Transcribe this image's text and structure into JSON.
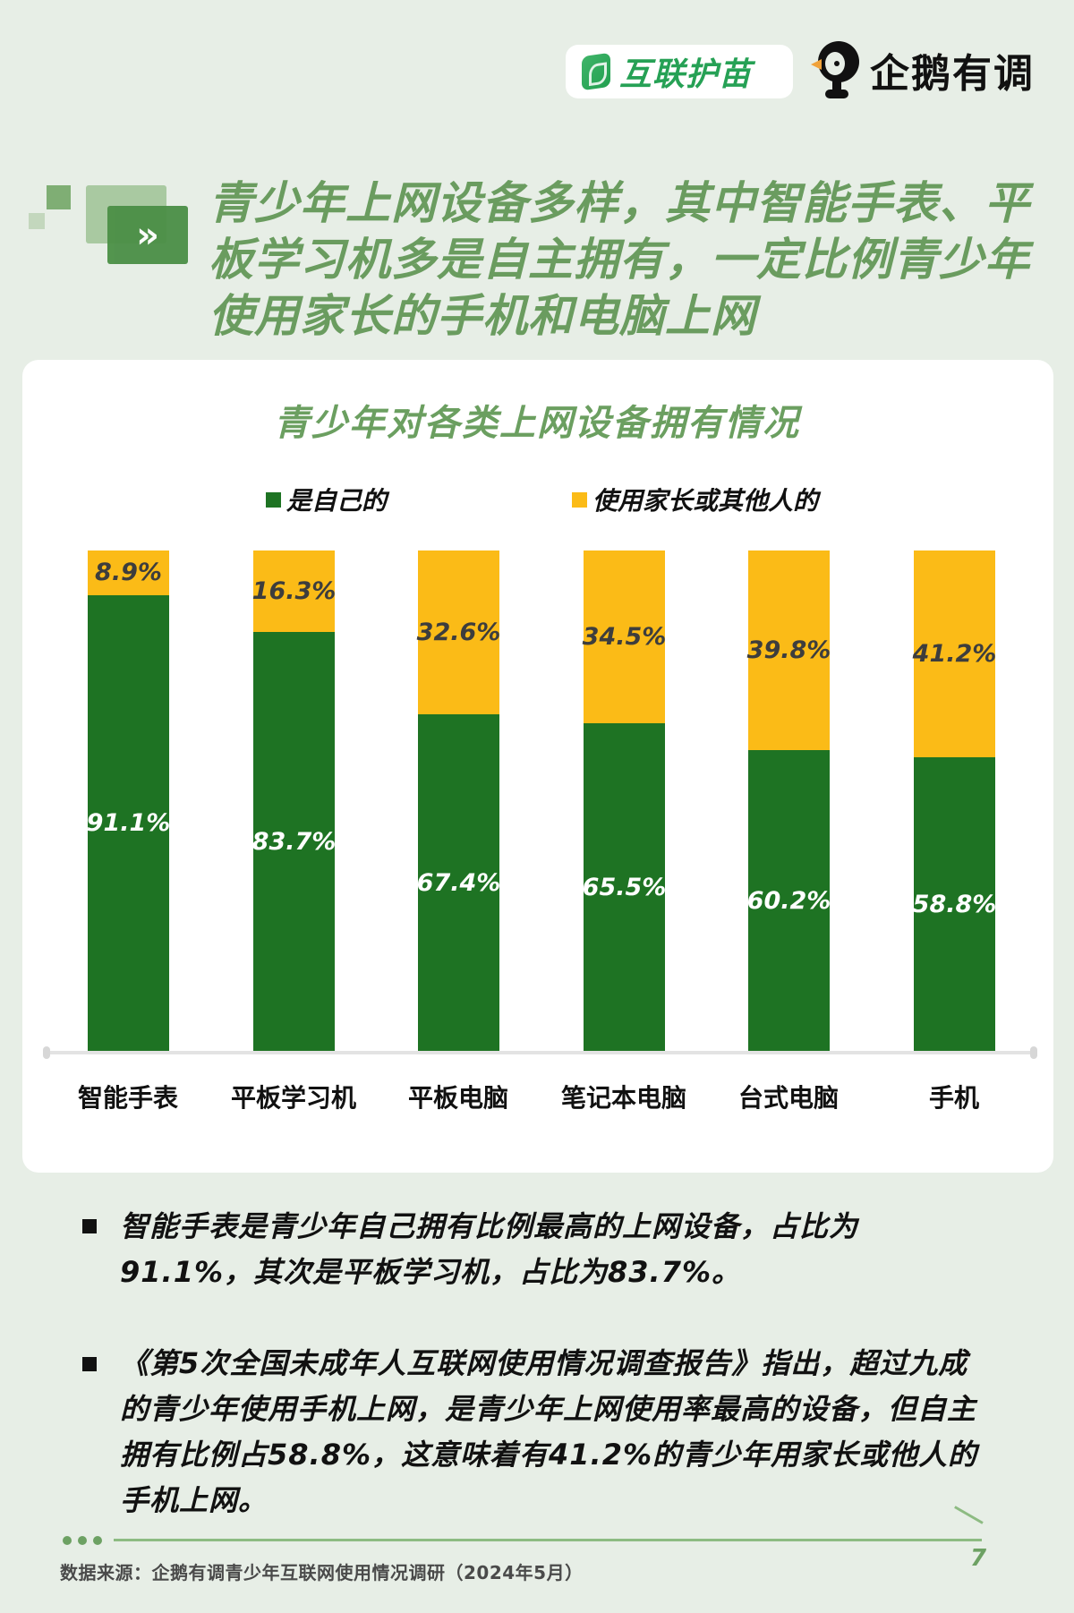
{
  "header": {
    "partner_logo_text": "互联护苗",
    "brand_logo_text": "企鹅有调",
    "partner_icon": "leaf-icon",
    "brand_icon": "penguin-icon"
  },
  "headline": {
    "icon": "double-chevron-right-icon",
    "icon_glyph": "»",
    "text": "青少年上网设备多样，其中智能手表、平板学习机多是自主拥有，一定比例青少年使用家长的手机和电脑上网"
  },
  "chart_data": {
    "type": "bar",
    "stacked": true,
    "title": "青少年对各类上网设备拥有情况",
    "categories": [
      "智能手表",
      "平板学习机",
      "平板电脑",
      "笔记本电脑",
      "台式电脑",
      "手机"
    ],
    "series": [
      {
        "name": "是自己的",
        "color": "#1e7323",
        "values": [
          91.1,
          83.7,
          67.4,
          65.5,
          60.2,
          58.8
        ],
        "labels": [
          "91.1%",
          "83.7%",
          "67.4%",
          "65.5%",
          "60.2%",
          "58.8%"
        ]
      },
      {
        "name": "使用家长或其他人的",
        "color": "#fbbb17",
        "values": [
          8.9,
          16.3,
          32.6,
          34.5,
          39.8,
          41.2
        ],
        "labels": [
          "8.9%",
          "16.3%",
          "32.6%",
          "34.5%",
          "39.8%",
          "41.2%"
        ]
      }
    ],
    "xlabel": "",
    "ylabel": "",
    "ylim": [
      0,
      100
    ],
    "unit": "%",
    "grid": false,
    "legend_position": "top"
  },
  "bullets": [
    {
      "text": "智能手表是青少年自己拥有比例最高的上网设备，占比为91.1%，其次是平板学习机，占比为83.7%。"
    },
    {
      "text": "《第5次全国未成年人互联网使用情况调查报告》指出，超过九成的青少年使用手机上网，是青少年上网使用率最高的设备，但自主拥有比例占58.8%，这意味着有41.2%的青少年用家长或他人的手机上网。"
    }
  ],
  "footer": {
    "source": "数据来源：企鹅有调青少年互联网使用情况调研（2024年5月）",
    "page_number": "7"
  }
}
